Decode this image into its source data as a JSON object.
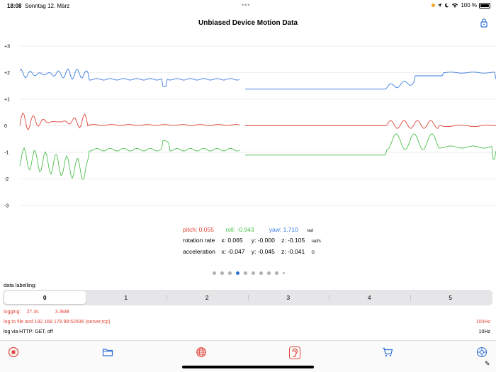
{
  "status_bar": {
    "time": "18:08",
    "date": "Sonntag 12. März",
    "battery": "100 %",
    "location_dot_color": "#f5a623"
  },
  "nav": {
    "title": "Unbiased Device Motion Data",
    "lock_icon": "lock-icon"
  },
  "chart_data": {
    "type": "line",
    "y_ticks": [
      "+3",
      "+2",
      "+1",
      "0",
      "-1",
      "-2",
      "-3"
    ],
    "ylim": [
      -3,
      3
    ],
    "grid": true,
    "series": [
      {
        "name": "yaw",
        "color": "#3a7be0",
        "baseline": 1.75
      },
      {
        "name": "pitch",
        "color": "#e0463a",
        "baseline": 0.05
      },
      {
        "name": "roll",
        "color": "#4cbf4c",
        "baseline": -0.94
      }
    ]
  },
  "readout": {
    "pitch": "pitch: 0.055",
    "roll": "roll: -0.943",
    "yaw": "yaw: 1.710",
    "unit_rad": "rad",
    "rotation_label": "rotation rate",
    "rotation_x": "x: 0.065",
    "rotation_y": "y: -0.000",
    "rotation_z": "z: -0.105",
    "unit_rads": "rad/s",
    "accel_label": "acceleration",
    "accel_x": "x: -0.047",
    "accel_y": "y: -0.045",
    "accel_z": "z: -0.041",
    "unit_g": "G"
  },
  "labelling": {
    "title": "data labelling:",
    "options": [
      "0",
      "1",
      "2",
      "3",
      "4",
      "5"
    ],
    "selected": "0"
  },
  "log": {
    "logging_label": "logging:",
    "duration": "27.3s",
    "size": "3.3MB",
    "target": "log to file and 192.168.178.99:52836 (server,tcp)",
    "target_rate": "100Hz",
    "http": "log via HTTP: GET, off",
    "http_rate": "10Hz"
  },
  "tab_bar": {
    "items": [
      "stop-icon",
      "folder-icon",
      "globe-icon",
      "ear-icon",
      "cart-icon",
      "settings-icon"
    ],
    "accent_red": "#e0463a",
    "accent_blue": "#2f6fd6"
  }
}
